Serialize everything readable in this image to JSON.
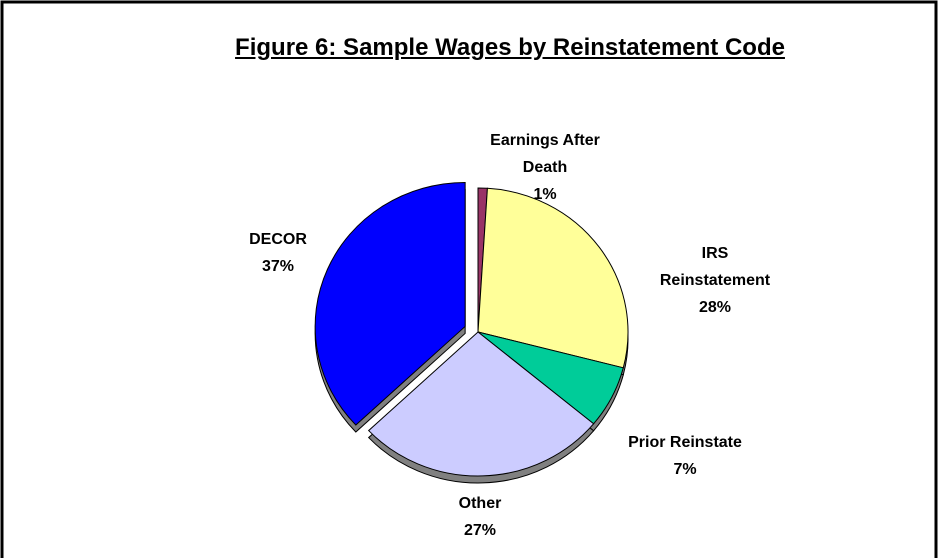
{
  "chart_data": {
    "type": "pie",
    "title": "Figure 6: Sample Wages by Reinstatement Code",
    "categories": [
      "Earnings After Death",
      "IRS Reinstatement",
      "Prior Reinstate",
      "Other",
      "DECOR"
    ],
    "values": [
      1,
      28,
      7,
      27,
      37
    ],
    "value_labels": [
      "1%",
      "28%",
      "7%",
      "27%",
      "37%"
    ],
    "colors": [
      "#993366",
      "#ffff99",
      "#00cc99",
      "#ccccff",
      "#0000ff"
    ],
    "exploded": [
      false,
      false,
      false,
      false,
      true
    ]
  }
}
